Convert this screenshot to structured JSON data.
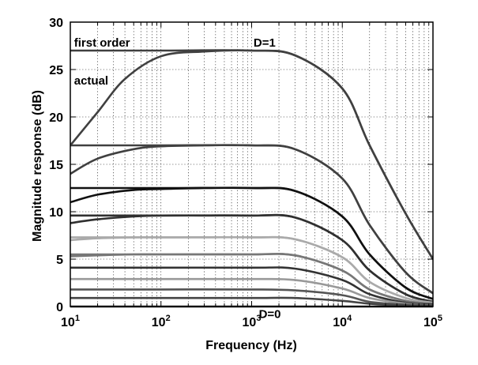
{
  "chart_data": {
    "type": "line",
    "xlabel": "Frequency (Hz)",
    "ylabel": "Magnitude response (dB)",
    "x_scale": "log",
    "xlim": [
      10,
      100000
    ],
    "ylim": [
      0,
      30
    ],
    "grid": true,
    "x_ticks": [
      {
        "value": 10,
        "base": "10",
        "exp": "1"
      },
      {
        "value": 100,
        "base": "10",
        "exp": "2"
      },
      {
        "value": 1000,
        "base": "10",
        "exp": "3"
      },
      {
        "value": 10000,
        "base": "10",
        "exp": "4"
      },
      {
        "value": 100000,
        "base": "10",
        "exp": "5"
      }
    ],
    "y_ticks": [
      0,
      5,
      10,
      15,
      20,
      25,
      30
    ],
    "annotations": [
      {
        "text": "first order",
        "x": 11,
        "y": 27.4
      },
      {
        "text": "actual",
        "x": 11,
        "y": 23.4
      },
      {
        "text": "D=1",
        "x": 1050,
        "y": 27.4
      },
      {
        "text": "D=0",
        "x": 1200,
        "y": -1.2
      }
    ],
    "series": [
      {
        "kind": "first order",
        "color": "#404040",
        "x": [
          10,
          100,
          1000,
          3000,
          10000,
          20000,
          50000,
          100000
        ],
        "y": [
          27.0,
          27.0,
          27.0,
          26.5,
          23.0,
          17.0,
          9.8,
          5.0
        ]
      },
      {
        "kind": "actual",
        "color": "#404040",
        "x": [
          10,
          20,
          40,
          100,
          300,
          1000,
          3000,
          10000,
          20000,
          50000,
          100000
        ],
        "y": [
          17.0,
          20.5,
          24.0,
          26.4,
          26.9,
          27.0,
          26.5,
          23.0,
          17.0,
          9.8,
          5.0
        ]
      },
      {
        "kind": "first order",
        "color": "#404040",
        "x": [
          10,
          100,
          1000,
          3000,
          10000,
          20000,
          50000,
          100000
        ],
        "y": [
          17.0,
          17.0,
          17.0,
          16.6,
          13.5,
          8.6,
          3.6,
          1.4
        ]
      },
      {
        "kind": "actual",
        "color": "#404040",
        "x": [
          10,
          20,
          50,
          100,
          300,
          1000,
          3000,
          10000,
          20000,
          50000,
          100000
        ],
        "y": [
          14.0,
          15.6,
          16.6,
          16.9,
          17.0,
          17.0,
          16.6,
          13.5,
          8.6,
          3.6,
          1.4
        ]
      },
      {
        "kind": "first order",
        "color": "#111111",
        "x": [
          10,
          100,
          1000,
          3000,
          10000,
          20000,
          50000,
          100000
        ],
        "y": [
          12.5,
          12.5,
          12.5,
          12.2,
          9.5,
          5.5,
          2.0,
          0.8
        ]
      },
      {
        "kind": "actual",
        "color": "#111111",
        "x": [
          10,
          20,
          50,
          100,
          300,
          1000,
          3000,
          10000,
          20000,
          50000,
          100000
        ],
        "y": [
          11.0,
          11.8,
          12.3,
          12.4,
          12.5,
          12.5,
          12.2,
          9.5,
          5.5,
          2.0,
          0.8
        ]
      },
      {
        "kind": "first order",
        "color": "#303030",
        "x": [
          10,
          100,
          1000,
          3000,
          10000,
          20000,
          50000,
          100000
        ],
        "y": [
          9.6,
          9.6,
          9.6,
          9.4,
          7.0,
          3.8,
          1.3,
          0.5
        ]
      },
      {
        "kind": "actual",
        "color": "#303030",
        "x": [
          10,
          20,
          50,
          100,
          300,
          1000,
          3000,
          10000,
          20000,
          50000,
          100000
        ],
        "y": [
          8.8,
          9.2,
          9.5,
          9.6,
          9.6,
          9.6,
          9.4,
          7.0,
          3.8,
          1.3,
          0.5
        ]
      },
      {
        "kind": "first order",
        "color": "#aaaaaa",
        "x": [
          10,
          100,
          1000,
          3000,
          10000,
          20000,
          50000,
          100000
        ],
        "y": [
          7.3,
          7.3,
          7.3,
          7.1,
          5.2,
          2.6,
          0.9,
          0.4
        ]
      },
      {
        "kind": "actual",
        "color": "#aaaaaa",
        "x": [
          10,
          20,
          50,
          100,
          300,
          1000,
          3000,
          10000,
          20000,
          50000,
          100000
        ],
        "y": [
          7.0,
          7.2,
          7.3,
          7.3,
          7.3,
          7.3,
          7.1,
          5.2,
          2.6,
          0.9,
          0.4
        ]
      },
      {
        "kind": "first order",
        "color": "#777777",
        "x": [
          10,
          100,
          1000,
          3000,
          10000,
          20000,
          50000,
          100000
        ],
        "y": [
          5.5,
          5.5,
          5.5,
          5.4,
          3.8,
          1.8,
          0.6,
          0.3
        ]
      },
      {
        "kind": "actual",
        "color": "#777777",
        "x": [
          10,
          20,
          50,
          100,
          300,
          1000,
          3000,
          10000,
          20000,
          50000,
          100000
        ],
        "y": [
          5.3,
          5.4,
          5.5,
          5.5,
          5.5,
          5.5,
          5.4,
          3.8,
          1.8,
          0.6,
          0.3
        ]
      },
      {
        "kind": "first order",
        "color": "#333333",
        "x": [
          10,
          100,
          1000,
          3000,
          10000,
          20000,
          50000,
          100000
        ],
        "y": [
          4.1,
          4.1,
          4.1,
          4.0,
          2.8,
          1.3,
          0.4,
          0.2
        ]
      },
      {
        "kind": "first order",
        "color": "#999999",
        "x": [
          10,
          100,
          1000,
          3000,
          10000,
          20000,
          50000,
          100000
        ],
        "y": [
          2.9,
          2.9,
          2.9,
          2.8,
          1.9,
          0.9,
          0.3,
          0.1
        ]
      },
      {
        "kind": "first order",
        "color": "#555555",
        "x": [
          10,
          100,
          1000,
          3000,
          10000,
          20000,
          50000,
          100000
        ],
        "y": [
          1.8,
          1.8,
          1.8,
          1.7,
          1.2,
          0.5,
          0.2,
          0.1
        ]
      },
      {
        "kind": "first order",
        "color": "#444444",
        "x": [
          10,
          100,
          1000,
          3000,
          10000,
          20000,
          50000,
          100000
        ],
        "y": [
          0.9,
          0.9,
          0.9,
          0.9,
          0.6,
          0.3,
          0.1,
          0.05
        ]
      },
      {
        "kind": "first order",
        "color": "#222222",
        "x": [
          10,
          100,
          1000,
          3000,
          10000,
          20000,
          50000,
          100000
        ],
        "y": [
          0.0,
          0.0,
          0.0,
          0.0,
          0.0,
          0.0,
          0.0,
          0.0
        ]
      }
    ]
  }
}
